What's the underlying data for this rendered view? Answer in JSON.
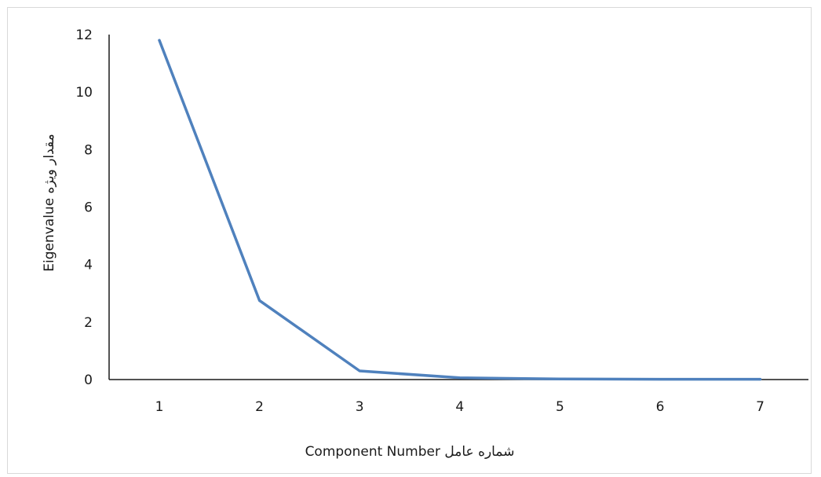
{
  "chart_data": {
    "type": "line",
    "title": "",
    "xlabel": "Component Number شماره عامل",
    "ylabel": "Eigenvalue مقدار ویژه",
    "x": [
      1,
      2,
      3,
      4,
      5,
      6,
      7
    ],
    "series": [
      {
        "values": [
          11.8,
          2.75,
          0.3,
          0.06,
          0.02,
          0.01,
          0.01
        ],
        "color": "#4f81bd"
      }
    ],
    "ylim": [
      0,
      12
    ],
    "yticks": [
      0,
      2,
      4,
      6,
      8,
      10,
      12
    ],
    "grid": false,
    "legend": false
  }
}
